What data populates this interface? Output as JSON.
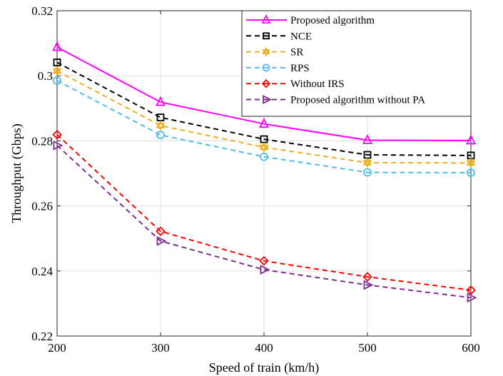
{
  "chart_data": {
    "type": "line",
    "title": "",
    "xlabel": "Speed of train (km/h)",
    "ylabel": "Throughput (Gbps)",
    "x": [
      200,
      300,
      400,
      500,
      600
    ],
    "xlim": [
      200,
      600
    ],
    "ylim": [
      0.22,
      0.32
    ],
    "xticks": [
      200,
      300,
      400,
      500,
      600
    ],
    "yticks": [
      0.22,
      0.24,
      0.26,
      0.28,
      0.3,
      0.32
    ],
    "ytick_labels": [
      "0.22",
      "0.24",
      "0.26",
      "0.28",
      "0.3",
      "0.32"
    ],
    "grid": true,
    "legend_position": "top-right",
    "series": [
      {
        "name": "Proposed algorithm",
        "values": [
          0.3088,
          0.2919,
          0.2852,
          0.2802,
          0.2801
        ],
        "color": "#ff00ff",
        "marker": "triangle-up",
        "dash": "solid"
      },
      {
        "name": "NCE",
        "values": [
          0.3041,
          0.2872,
          0.2805,
          0.2757,
          0.2755
        ],
        "color": "#000000",
        "marker": "square",
        "dash": "dashed"
      },
      {
        "name": "SR",
        "values": [
          0.3015,
          0.2847,
          0.278,
          0.2733,
          0.2732
        ],
        "color": "#edb120",
        "marker": "hexagram",
        "dash": "dashed"
      },
      {
        "name": "RPS",
        "values": [
          0.2985,
          0.2818,
          0.2751,
          0.2703,
          0.2702
        ],
        "color": "#4dbeee",
        "marker": "circle",
        "dash": "dashed"
      },
      {
        "name": "Without IRS",
        "values": [
          0.2819,
          0.2522,
          0.2431,
          0.2382,
          0.2341
        ],
        "color": "#ff0000",
        "marker": "diamond",
        "dash": "dashed"
      },
      {
        "name": "Proposed algorithm without PA",
        "values": [
          0.2786,
          0.2492,
          0.2404,
          0.2357,
          0.2318
        ],
        "color": "#7e2f8e",
        "marker": "triangle-right",
        "dash": "dashed"
      }
    ]
  }
}
